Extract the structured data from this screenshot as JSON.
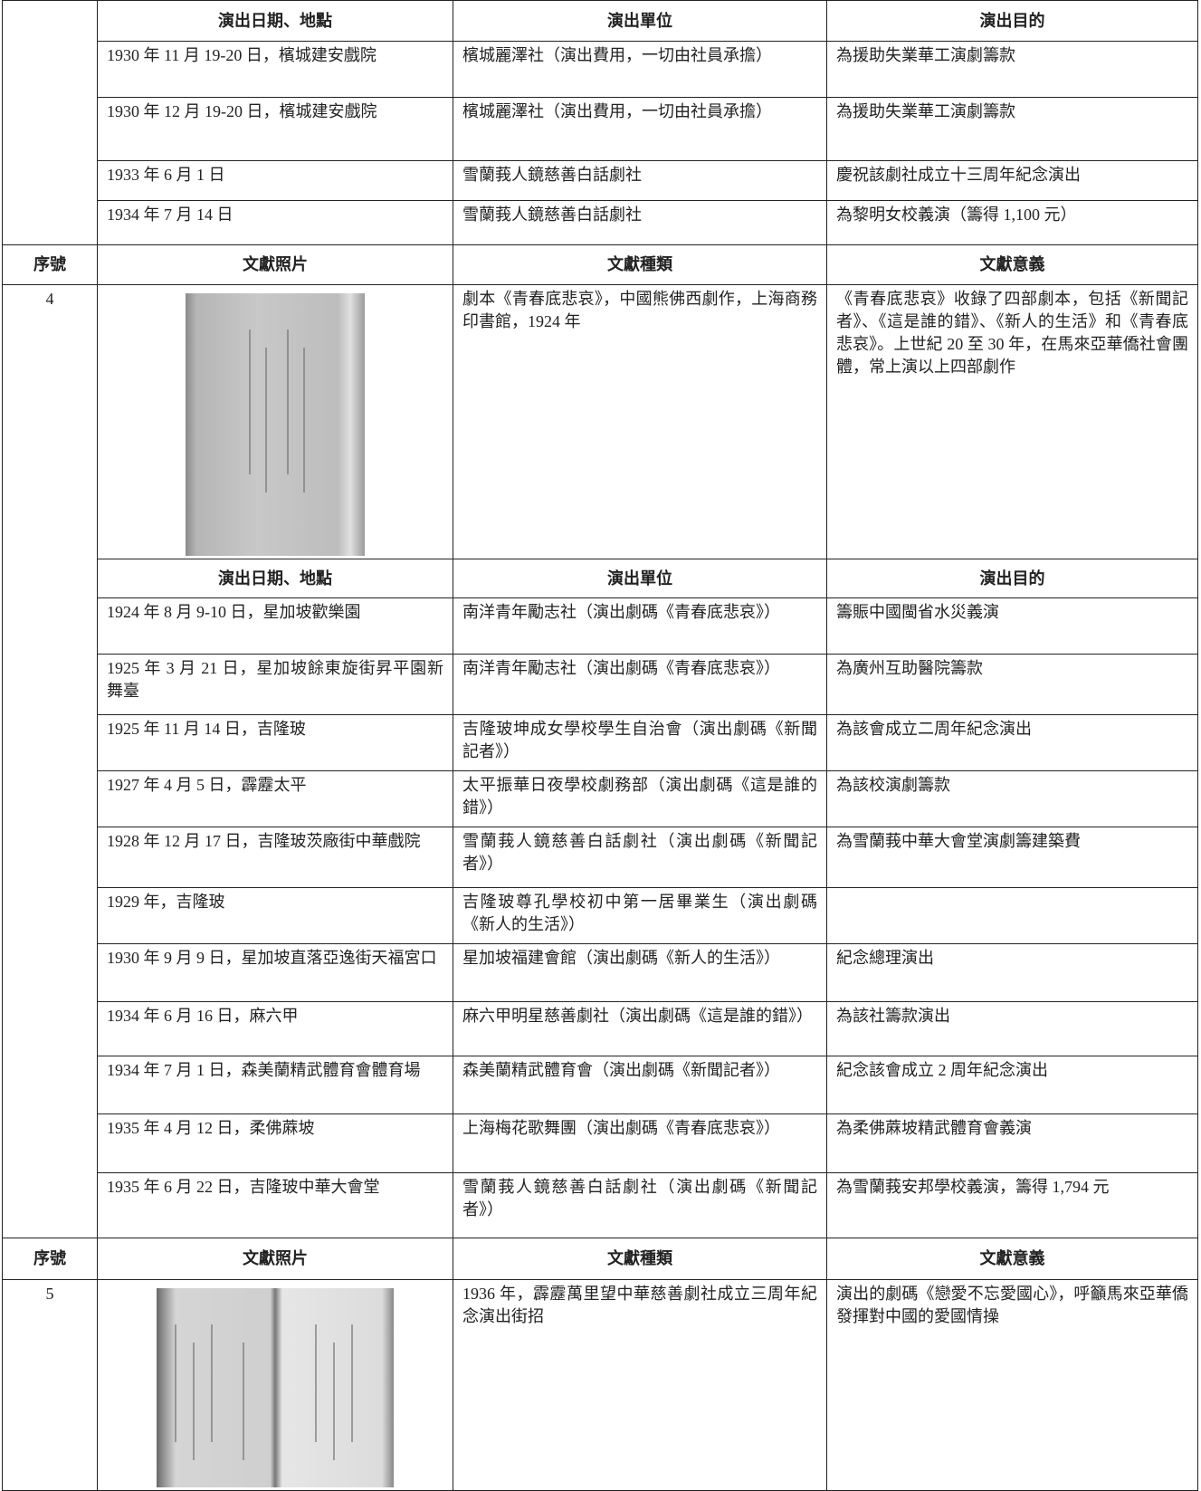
{
  "table": {
    "first_block": {
      "header": [
        "演出日期、地點",
        "演出單位",
        "演出目的"
      ],
      "rows": [
        [
          "1930 年 11 月 19-20 日，檳城建安戲院",
          "檳城麗澤社（演出費用，一切由社員承擔）",
          "為援助失業華工演劇籌款"
        ],
        [
          "1930 年 12 月 19-20 日，檳城建安戲院",
          "檳城麗澤社（演出費用，一切由社員承擔）",
          "為援助失業華工演劇籌款"
        ],
        [
          "1933 年 6 月 1 日",
          "雪蘭莪人鏡慈善白話劇社",
          "慶祝該劇社成立十三周年紀念演出"
        ],
        [
          "1934 年 7 月 14 日",
          "雪蘭莪人鏡慈善白話劇社",
          "為黎明女校義演（籌得 1,100 元）"
        ]
      ]
    },
    "sections": [
      {
        "header": [
          "序號",
          "文獻照片",
          "文獻種類",
          "文獻意義"
        ],
        "number": "4",
        "kind": "劇本《青春底悲哀》，中國熊佛西劇作，上海商務印書館，1924 年",
        "meaning": "《青春底悲哀》收錄了四部劇本，包括《新聞記者》、《這是誰的錯》、《新人的生活》和《青春底悲哀》。上世紀 20 至 30 年，在馬來亞華僑社會團體，常上演以上四部劇作",
        "performance_header": [
          "演出日期、地點",
          "演出單位",
          "演出目的"
        ],
        "performances": [
          [
            "1924 年 8 月 9-10 日，星加坡歡樂園",
            "南洋青年勵志社（演出劇碼《青春底悲哀》）",
            "籌賑中國閩省水災義演"
          ],
          [
            "1925 年 3 月 21 日，星加坡餘東旋街昇平園新舞臺",
            "南洋青年勵志社（演出劇碼《青春底悲哀》）",
            "為廣州互助醫院籌款"
          ],
          [
            "1925 年 11 月 14 日，吉隆玻",
            "吉隆玻坤成女學校學生自治會（演出劇碼《新聞記者》）",
            "為該會成立二周年紀念演出"
          ],
          [
            "1927 年 4 月 5 日，霹靂太平",
            "太平振華日夜學校劇務部（演出劇碼《這是誰的錯》）",
            "為該校演劇籌款"
          ],
          [
            "1928 年 12 月 17 日，吉隆玻茨廠街中華戲院",
            "雪蘭莪人鏡慈善白話劇社（演出劇碼《新聞記者》）",
            "為雪蘭莪中華大會堂演劇籌建築費"
          ],
          [
            "1929 年，吉隆玻",
            "吉隆玻尊孔學校初中第一居畢業生（演出劇碼《新人的生活》）",
            null
          ],
          [
            "1930 年 9 月 9 日，星加坡直落亞逸街天福宮口",
            "星加坡福建會館（演出劇碼《新人的生活》）",
            "紀念總理演出"
          ],
          [
            "1934 年 6 月 16 日，麻六甲",
            "麻六甲明星慈善劇社（演出劇碼《這是誰的錯》）",
            "為該社籌款演出"
          ],
          [
            "1934 年 7 月 1 日，森美蘭精武體育會體育場",
            "森美蘭精武體育會（演出劇碼《新聞記者》）",
            "紀念該會成立 2 周年紀念演出"
          ],
          [
            "1935 年 4 月 12 日，柔佛蔴坡",
            "上海梅花歌舞團（演出劇碼《青春底悲哀》）",
            "為柔佛蔴坡精武體育會義演"
          ],
          [
            "1935 年 6 月 22 日，吉隆玻中華大會堂",
            "雪蘭莪人鏡慈善白話劇社（演出劇碼《新聞記者》）",
            "為雪蘭莪安邦學校義演，籌得 1,794 元"
          ]
        ]
      },
      {
        "header": [
          "序號",
          "文獻照片",
          "文獻種類",
          "文獻意義"
        ],
        "number": "5",
        "kind": "1936 年，霹靂萬里望中華慈善劇社成立三周年紀念演出街招",
        "meaning": "演出的劇碼《戀愛不忘愛國心》，呼籲馬來亞華僑發揮對中國的愛國情操"
      }
    ]
  }
}
